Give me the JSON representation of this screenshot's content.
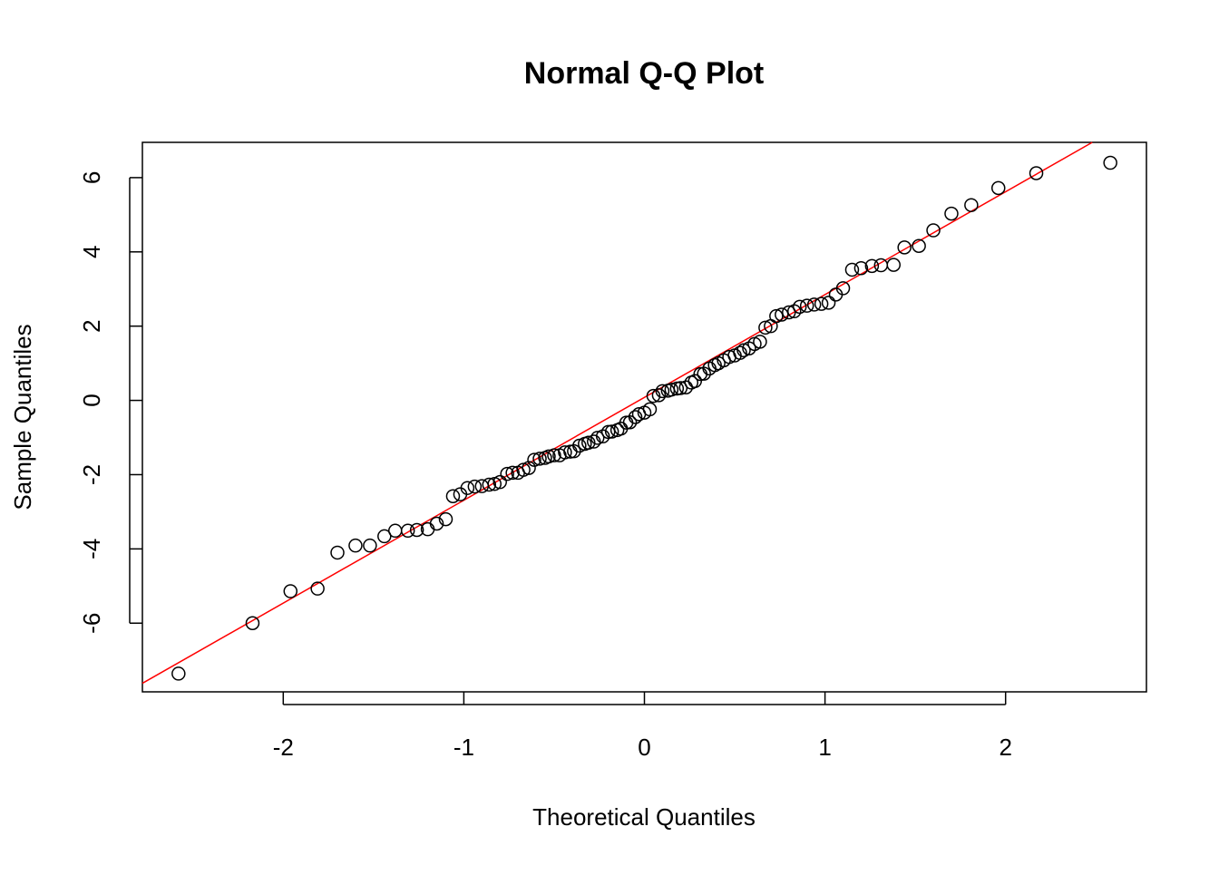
{
  "chart_data": {
    "type": "scatter",
    "title": "Normal Q-Q Plot",
    "xlabel": "Theoretical Quantiles",
    "ylabel": "Sample Quantiles",
    "xlim": [
      -2.78,
      2.78
    ],
    "ylim": [
      -7.85,
      6.95
    ],
    "xticks": [
      -2,
      -1,
      0,
      1,
      2
    ],
    "yticks": [
      -6,
      -4,
      -2,
      0,
      2,
      4,
      6
    ],
    "grid": false,
    "series": [
      {
        "points": [
          [
            -2.58,
            -7.36
          ],
          [
            -2.17,
            -6.0
          ],
          [
            -1.96,
            -5.14
          ],
          [
            -1.81,
            -5.07
          ],
          [
            -1.7,
            -4.1
          ],
          [
            -1.6,
            -3.91
          ],
          [
            -1.52,
            -3.91
          ],
          [
            -1.44,
            -3.66
          ],
          [
            -1.38,
            -3.51
          ],
          [
            -1.31,
            -3.51
          ],
          [
            -1.26,
            -3.49
          ],
          [
            -1.2,
            -3.47
          ],
          [
            -1.15,
            -3.32
          ],
          [
            -1.1,
            -3.2
          ],
          [
            -1.06,
            -2.58
          ],
          [
            -1.02,
            -2.53
          ],
          [
            -0.98,
            -2.36
          ],
          [
            -0.94,
            -2.32
          ],
          [
            -0.9,
            -2.31
          ],
          [
            -0.86,
            -2.27
          ],
          [
            -0.83,
            -2.25
          ],
          [
            -0.8,
            -2.2
          ],
          [
            -0.76,
            -1.98
          ],
          [
            -0.73,
            -1.95
          ],
          [
            -0.7,
            -1.95
          ],
          [
            -0.67,
            -1.87
          ],
          [
            -0.64,
            -1.82
          ],
          [
            -0.61,
            -1.6
          ],
          [
            -0.58,
            -1.57
          ],
          [
            -0.55,
            -1.55
          ],
          [
            -0.53,
            -1.51
          ],
          [
            -0.5,
            -1.48
          ],
          [
            -0.47,
            -1.48
          ],
          [
            -0.44,
            -1.4
          ],
          [
            -0.41,
            -1.38
          ],
          [
            -0.39,
            -1.37
          ],
          [
            -0.36,
            -1.22
          ],
          [
            -0.33,
            -1.17
          ],
          [
            -0.31,
            -1.14
          ],
          [
            -0.28,
            -1.11
          ],
          [
            -0.26,
            -1.01
          ],
          [
            -0.23,
            -0.97
          ],
          [
            -0.2,
            -0.85
          ],
          [
            -0.18,
            -0.84
          ],
          [
            -0.15,
            -0.8
          ],
          [
            -0.13,
            -0.76
          ],
          [
            -0.1,
            -0.6
          ],
          [
            -0.08,
            -0.59
          ],
          [
            -0.05,
            -0.45
          ],
          [
            -0.03,
            -0.37
          ],
          [
            0.0,
            -0.33
          ],
          [
            0.03,
            -0.24
          ],
          [
            0.05,
            0.12
          ],
          [
            0.08,
            0.14
          ],
          [
            0.1,
            0.25
          ],
          [
            0.13,
            0.26
          ],
          [
            0.15,
            0.29
          ],
          [
            0.18,
            0.32
          ],
          [
            0.2,
            0.33
          ],
          [
            0.23,
            0.35
          ],
          [
            0.26,
            0.48
          ],
          [
            0.28,
            0.52
          ],
          [
            0.31,
            0.71
          ],
          [
            0.33,
            0.72
          ],
          [
            0.36,
            0.86
          ],
          [
            0.39,
            0.95
          ],
          [
            0.41,
            1.0
          ],
          [
            0.44,
            1.08
          ],
          [
            0.47,
            1.17
          ],
          [
            0.5,
            1.21
          ],
          [
            0.53,
            1.28
          ],
          [
            0.55,
            1.35
          ],
          [
            0.58,
            1.4
          ],
          [
            0.61,
            1.52
          ],
          [
            0.64,
            1.58
          ],
          [
            0.67,
            1.96
          ],
          [
            0.7,
            2.0
          ],
          [
            0.73,
            2.27
          ],
          [
            0.76,
            2.31
          ],
          [
            0.8,
            2.37
          ],
          [
            0.83,
            2.4
          ],
          [
            0.86,
            2.52
          ],
          [
            0.9,
            2.55
          ],
          [
            0.94,
            2.58
          ],
          [
            0.98,
            2.6
          ],
          [
            1.02,
            2.63
          ],
          [
            1.06,
            2.85
          ],
          [
            1.1,
            3.02
          ],
          [
            1.15,
            3.52
          ],
          [
            1.2,
            3.56
          ],
          [
            1.26,
            3.62
          ],
          [
            1.31,
            3.64
          ],
          [
            1.38,
            3.65
          ],
          [
            1.44,
            4.12
          ],
          [
            1.52,
            4.16
          ],
          [
            1.6,
            4.58
          ],
          [
            1.7,
            5.03
          ],
          [
            1.81,
            5.26
          ],
          [
            1.96,
            5.72
          ],
          [
            2.17,
            6.12
          ],
          [
            2.58,
            6.4
          ]
        ]
      }
    ],
    "reference_line": {
      "color": "#ff0000",
      "x0": -2.78,
      "y0": -7.62,
      "x1": 2.48,
      "y1": 6.95
    },
    "point_style": {
      "shape": "open-circle",
      "color": "#000000"
    }
  }
}
